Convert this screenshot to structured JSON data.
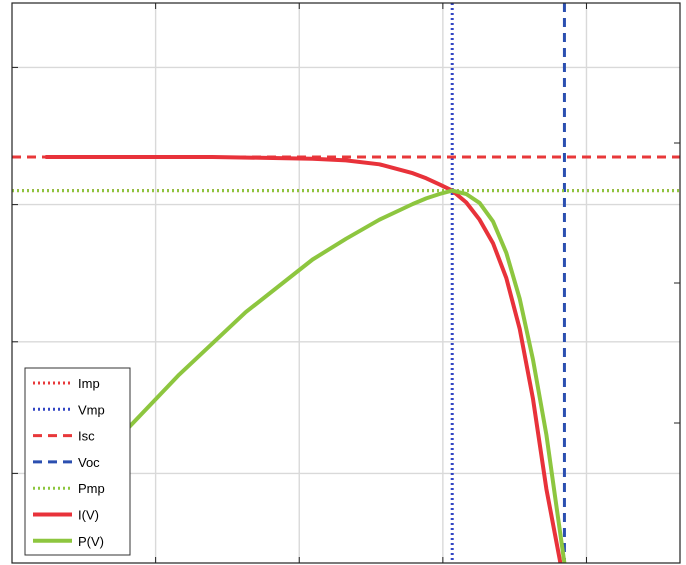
{
  "chart_data": {
    "type": "line",
    "title": "",
    "xlabel": "",
    "ylabel": "",
    "xlim": [
      0,
      100
    ],
    "ylim": [
      0,
      100
    ],
    "grid": true,
    "legend_position": "bottom-left",
    "reference_lines": [
      {
        "name": "Imp",
        "orientation": "horizontal",
        "value": 66.5,
        "color": "#e8383a",
        "style": "dotted"
      },
      {
        "name": "Vmp",
        "orientation": "vertical",
        "value": 65.9,
        "color": "#3346c4",
        "style": "dotted"
      },
      {
        "name": "Isc",
        "orientation": "horizontal",
        "value": 72.5,
        "color": "#e8383a",
        "style": "dashed"
      },
      {
        "name": "Voc",
        "orientation": "vertical",
        "value": 82.7,
        "color": "#2b4fb0",
        "style": "dashed"
      },
      {
        "name": "Pmp",
        "orientation": "horizontal",
        "value": 66.5,
        "color": "#8dc63f",
        "style": "dotted"
      }
    ],
    "series": [
      {
        "name": "I(V)",
        "color": "#e8323a",
        "x": [
          5,
          20,
          30,
          40,
          45,
          50,
          55,
          60,
          62,
          64,
          65.9,
          68,
          70,
          72,
          74,
          76,
          78,
          80,
          82.1
        ],
        "y": [
          72.5,
          72.5,
          72.5,
          72.3,
          72.2,
          71.9,
          71.2,
          69.6,
          68.7,
          67.6,
          66.5,
          64.4,
          61.3,
          57.1,
          50.9,
          41.8,
          29.3,
          13.2,
          0
        ]
      },
      {
        "name": "P(V)",
        "color": "#8dc63f",
        "x": [
          17,
          25,
          35,
          45,
          50,
          55,
          60,
          62,
          64,
          65.9,
          68,
          70,
          72,
          74,
          76,
          78,
          80,
          82.7
        ],
        "y": [
          23.6,
          33.6,
          44.8,
          54.2,
          57.9,
          61.3,
          64.1,
          65.1,
          65.9,
          66.5,
          65.9,
          64.3,
          61.0,
          55.4,
          47.2,
          36.3,
          22.9,
          0
        ]
      }
    ],
    "legend": [
      "Imp",
      "Vmp",
      "Isc",
      "Voc",
      "Pmp",
      "I(V)",
      "P(V)"
    ]
  }
}
